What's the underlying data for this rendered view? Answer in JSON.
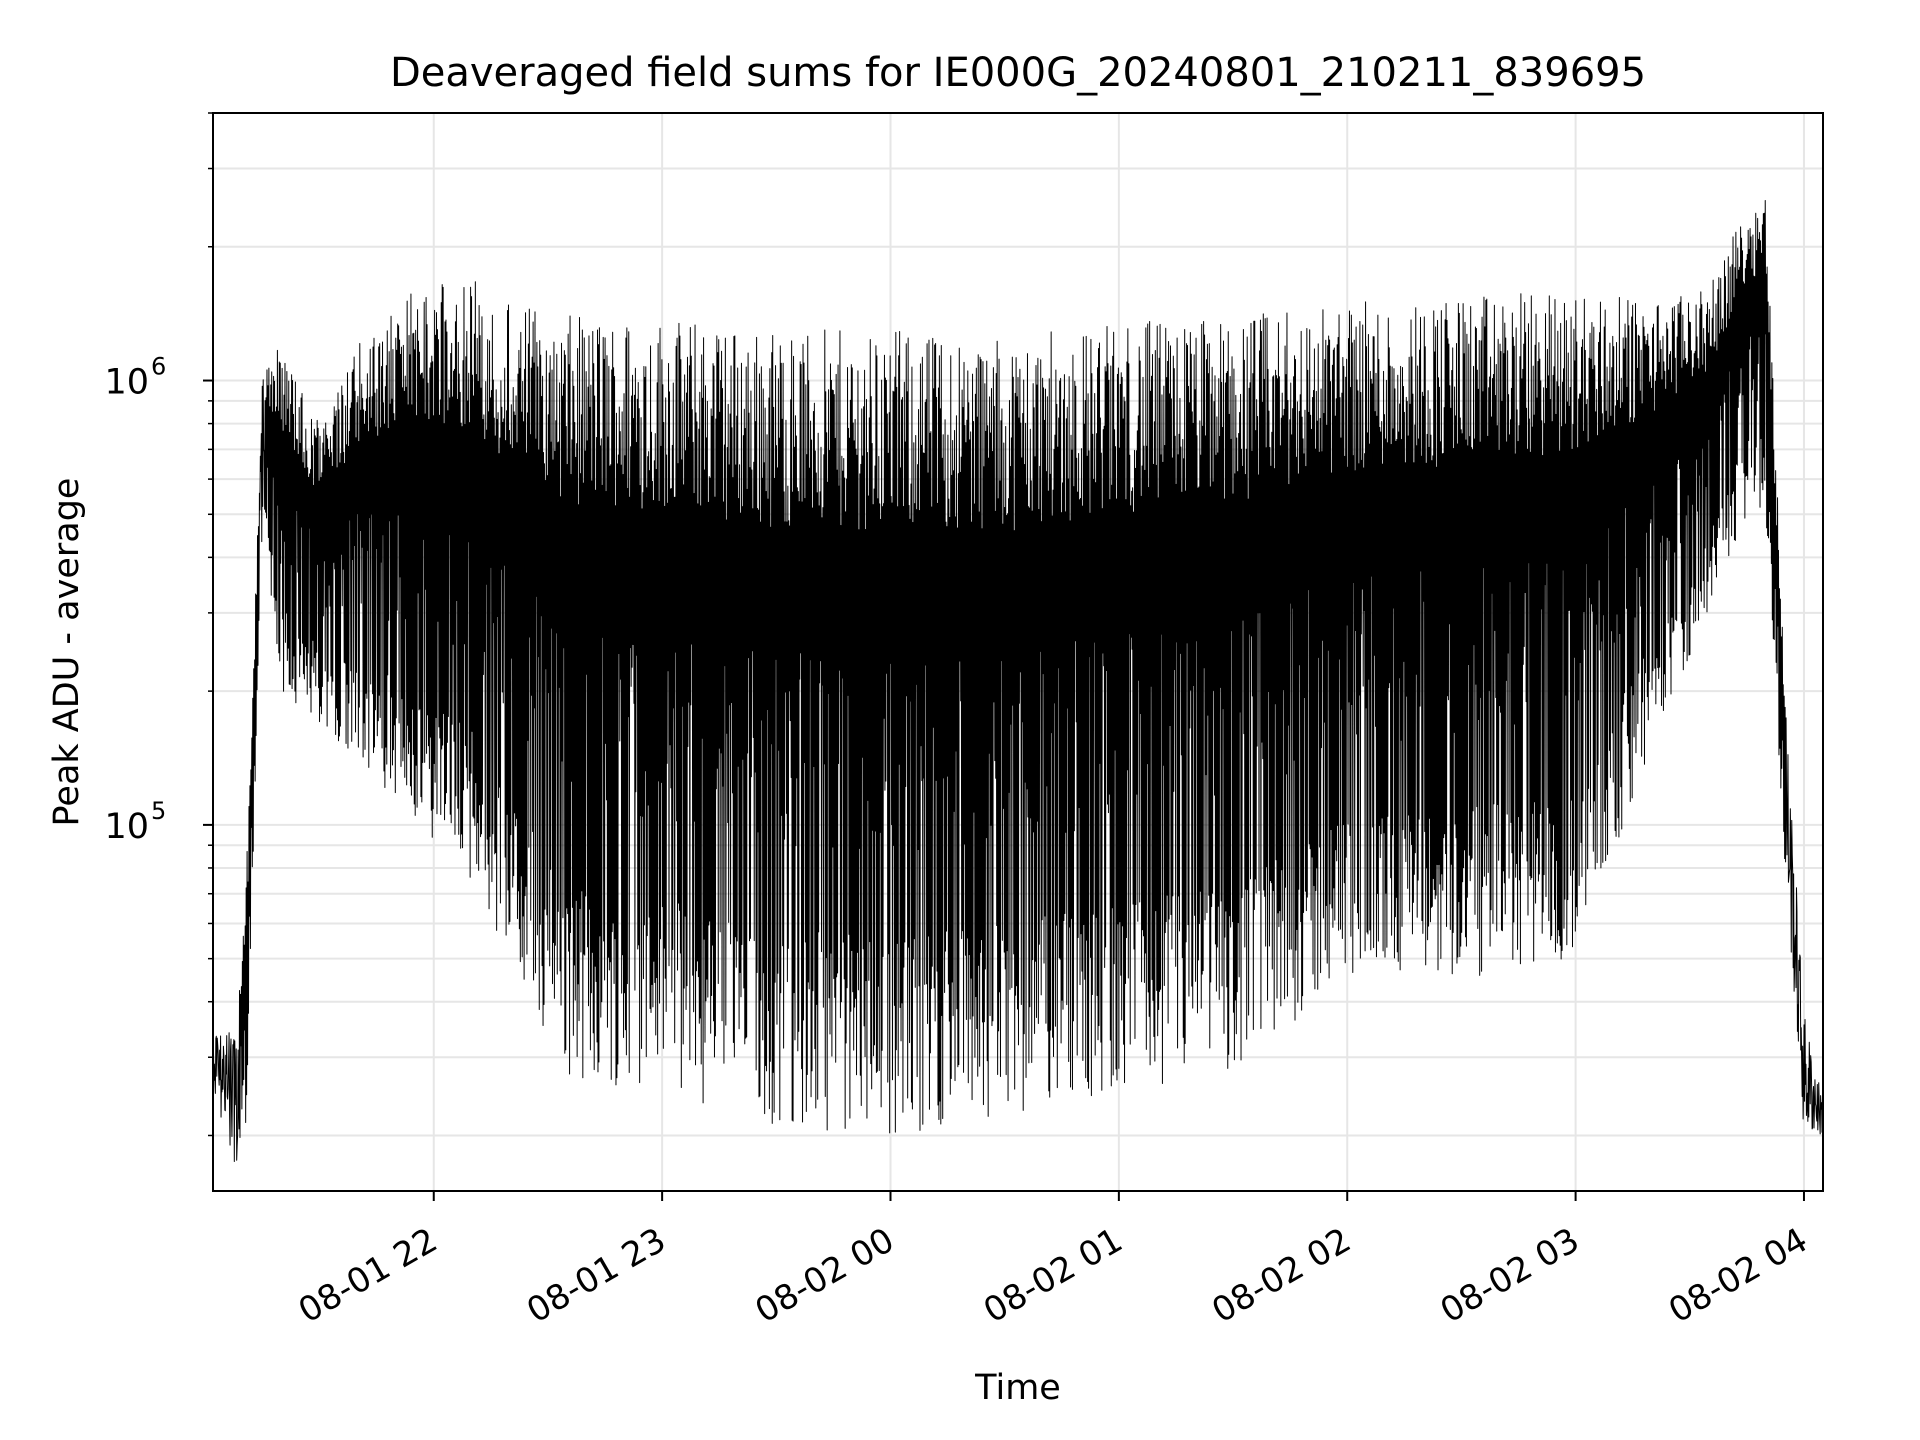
{
  "colors": {
    "line": "#000000",
    "grid": "#e6e6e6",
    "background": "#ffffff",
    "frame": "#000000"
  },
  "chart_data": {
    "type": "line",
    "title": "Deaveraged field sums for IE000G_20240801_210211_839695",
    "xlabel": "Time",
    "ylabel": "Peak ADU - average",
    "yscale": "log",
    "ylim": [
      15000,
      4000000
    ],
    "xlim": [
      "2024-08-01 21:02:00",
      "2024-08-02 04:05:00"
    ],
    "grid": true,
    "legend": "none",
    "x_ticks": [
      {
        "label": "08-01 22",
        "t": "2024-08-01 22:00"
      },
      {
        "label": "08-01 23",
        "t": "2024-08-01 23:00"
      },
      {
        "label": "08-02 00",
        "t": "2024-08-02 00:00"
      },
      {
        "label": "08-02 01",
        "t": "2024-08-02 01:00"
      },
      {
        "label": "08-02 02",
        "t": "2024-08-02 02:00"
      },
      {
        "label": "08-02 03",
        "t": "2024-08-02 03:00"
      },
      {
        "label": "08-02 04",
        "t": "2024-08-02 04:00"
      }
    ],
    "y_ticks": [
      {
        "base": "10",
        "exp": "5",
        "value": 100000
      },
      {
        "base": "10",
        "exp": "6",
        "value": 1000000
      }
    ],
    "series": [
      {
        "color": "#000000",
        "note_profile": "time (2024-08-01/02) → representative high / low envelope of the oscillating signal (ADU)",
        "envelope": [
          {
            "t": "2024-08-01 21:02",
            "high": 35000,
            "low": 25000
          },
          {
            "t": "2024-08-01 21:08",
            "high": 35000,
            "low": 17000
          },
          {
            "t": "2024-08-01 21:11",
            "high": 90000,
            "low": 22000
          },
          {
            "t": "2024-08-01 21:15",
            "high": 1100000,
            "low": 500000
          },
          {
            "t": "2024-08-01 21:20",
            "high": 1200000,
            "low": 200000
          },
          {
            "t": "2024-08-01 21:30",
            "high": 800000,
            "low": 170000
          },
          {
            "t": "2024-08-01 21:40",
            "high": 1200000,
            "low": 140000
          },
          {
            "t": "2024-08-01 21:55",
            "high": 1600000,
            "low": 100000
          },
          {
            "t": "2024-08-01 22:10",
            "high": 1700000,
            "low": 75000
          },
          {
            "t": "2024-08-01 22:20",
            "high": 1500000,
            "low": 50000
          },
          {
            "t": "2024-08-01 22:35",
            "high": 1400000,
            "low": 27000
          },
          {
            "t": "2024-08-01 23:00",
            "high": 1400000,
            "low": 25000
          },
          {
            "t": "2024-08-01 23:30",
            "high": 1300000,
            "low": 21000
          },
          {
            "t": "2024-08-02 00:00",
            "high": 1300000,
            "low": 20000
          },
          {
            "t": "2024-08-02 00:30",
            "high": 1250000,
            "low": 22000
          },
          {
            "t": "2024-08-02 01:00",
            "high": 1350000,
            "low": 25000
          },
          {
            "t": "2024-08-02 01:30",
            "high": 1400000,
            "low": 28000
          },
          {
            "t": "2024-08-02 02:00",
            "high": 1500000,
            "low": 45000
          },
          {
            "t": "2024-08-02 02:30",
            "high": 1550000,
            "low": 45000
          },
          {
            "t": "2024-08-02 03:00",
            "high": 1600000,
            "low": 50000
          },
          {
            "t": "2024-08-02 03:20",
            "high": 1500000,
            "low": 150000
          },
          {
            "t": "2024-08-02 03:35",
            "high": 1600000,
            "low": 300000
          },
          {
            "t": "2024-08-02 03:45",
            "high": 2500000,
            "low": 500000
          },
          {
            "t": "2024-08-02 03:50",
            "high": 2700000,
            "low": 500000
          },
          {
            "t": "2024-08-02 03:55",
            "high": 200000,
            "low": 80000
          },
          {
            "t": "2024-08-02 04:00",
            "high": 38000,
            "low": 20000
          },
          {
            "t": "2024-08-02 04:05",
            "high": 24000,
            "low": 20000
          }
        ]
      }
    ]
  }
}
